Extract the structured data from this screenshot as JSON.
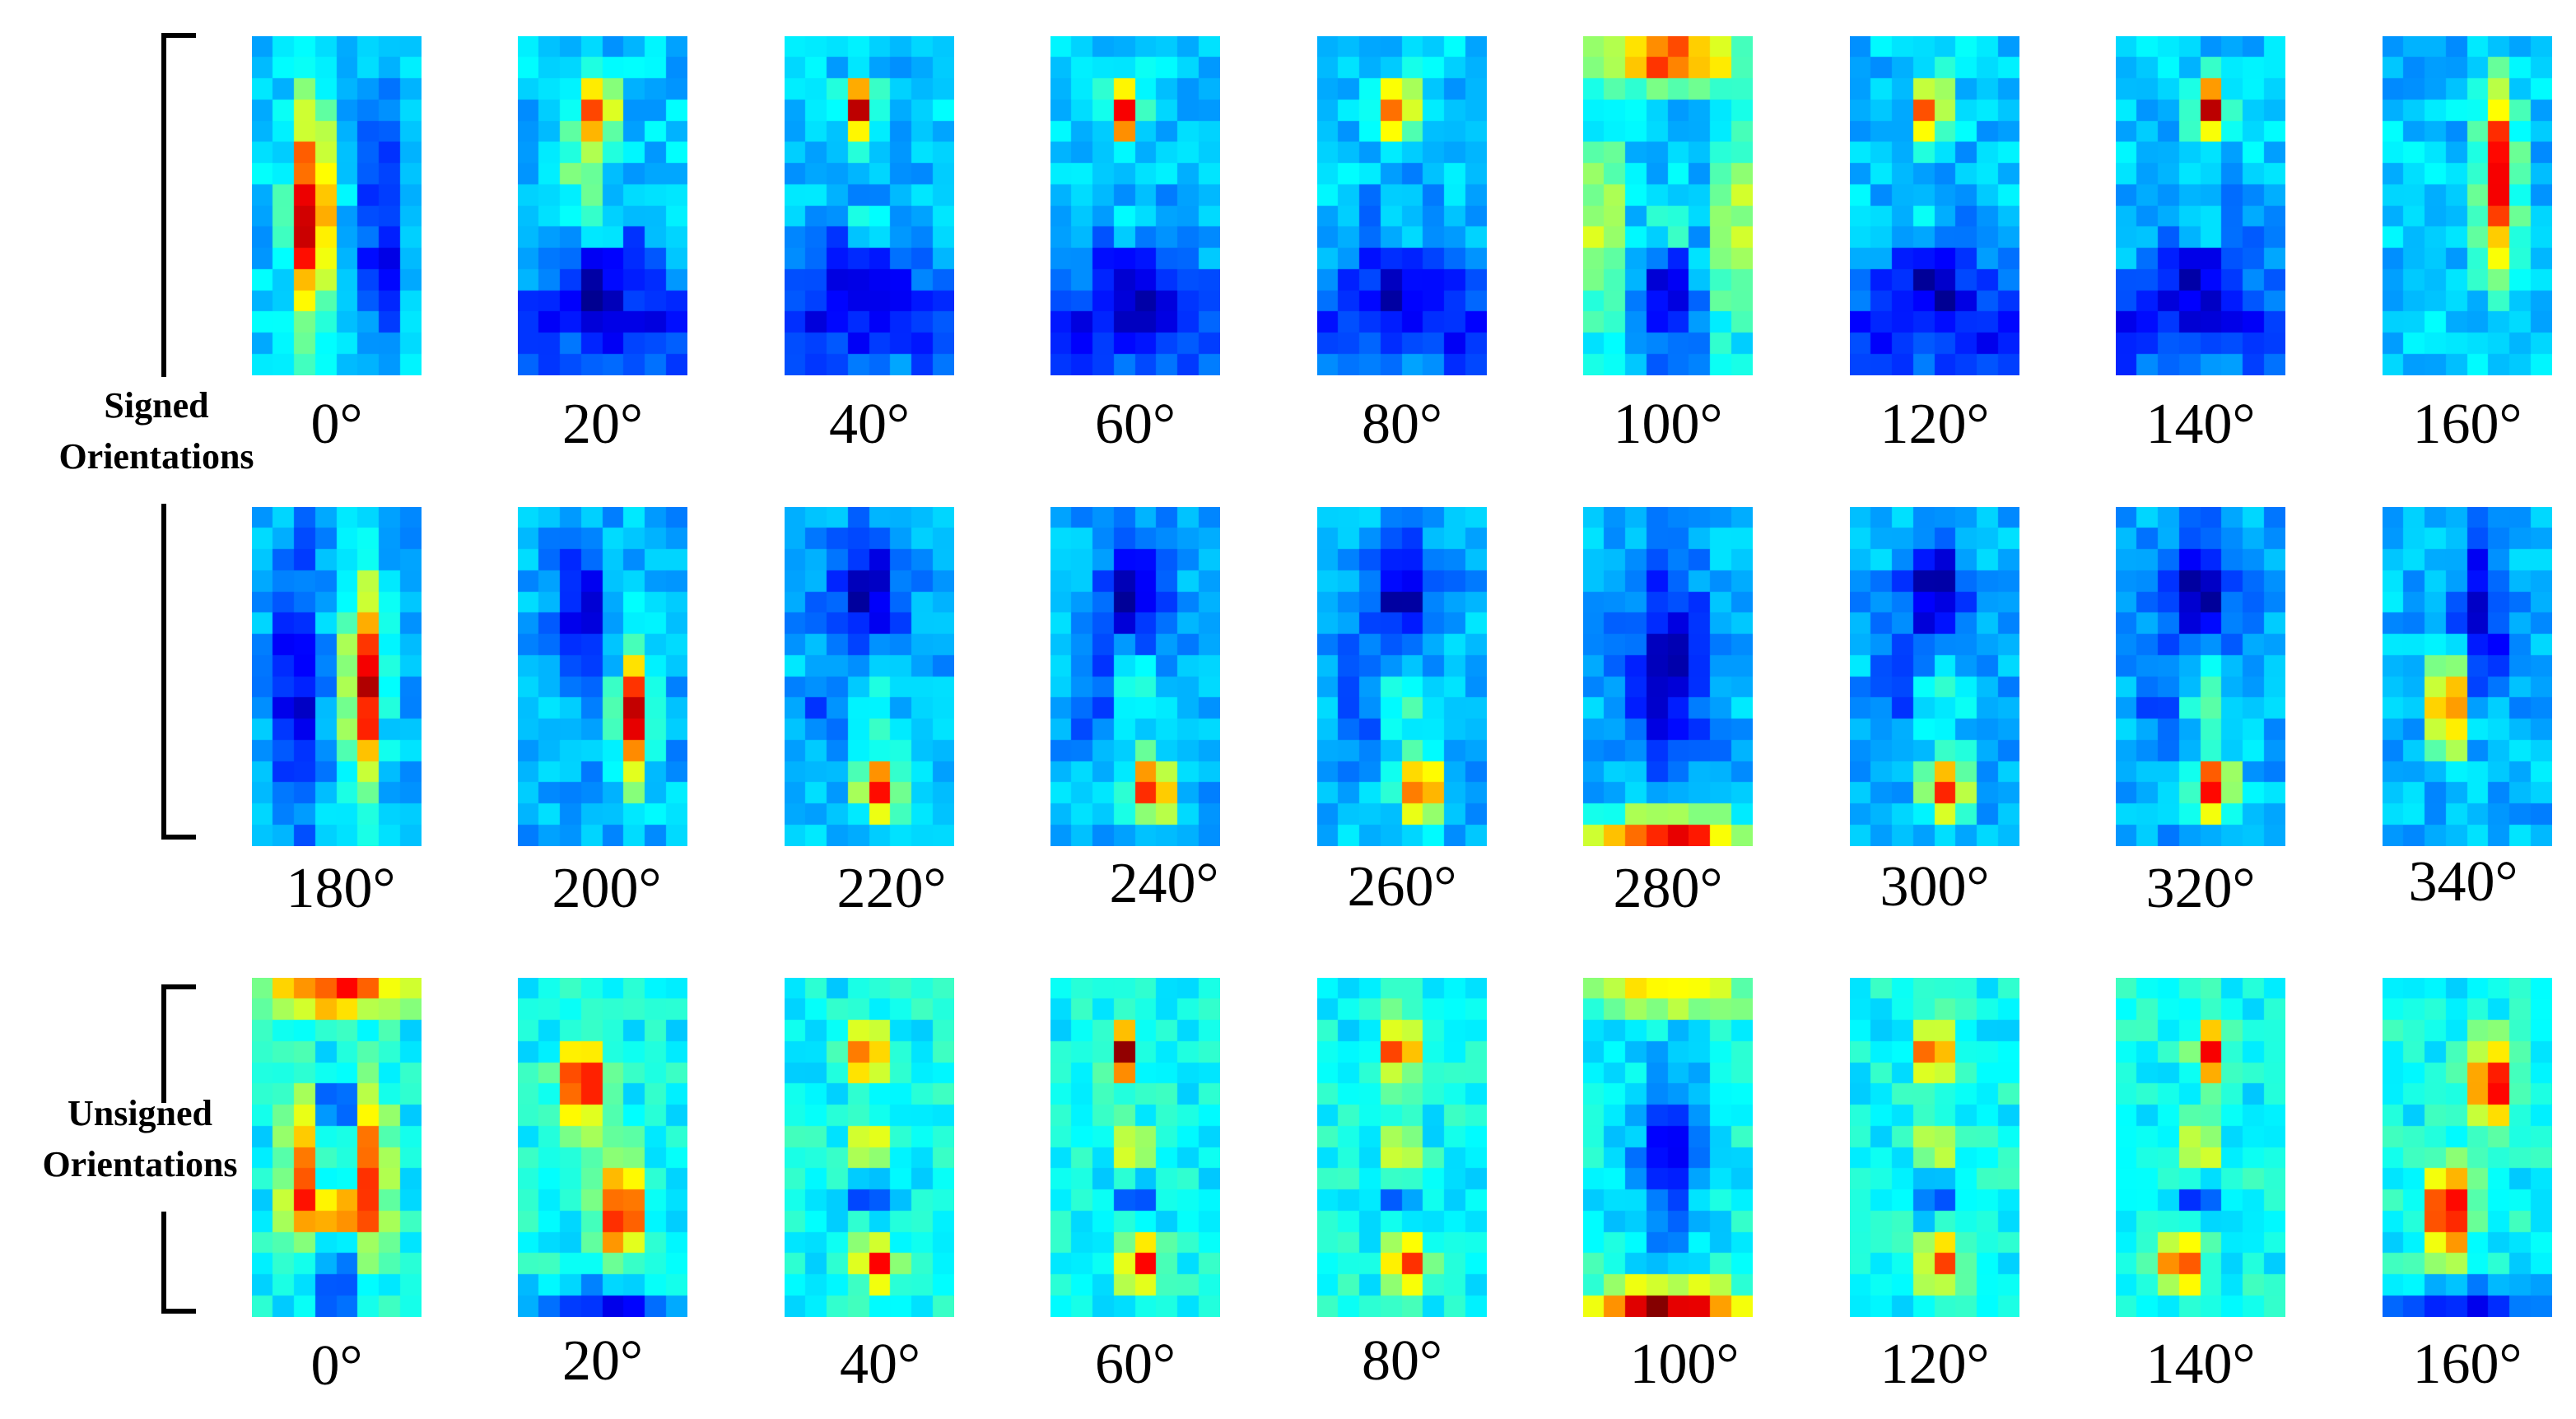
{
  "figure": {
    "groups": [
      {
        "label_lines": [
          "Signed",
          "Orientations"
        ]
      },
      {
        "label_lines": [
          "Unsigned",
          "Orientations"
        ]
      }
    ],
    "rows": [
      {
        "group": "signed",
        "angles": [
          "0°",
          "20°",
          "40°",
          "60°",
          "80°",
          "100°",
          "120°",
          "140°",
          "160°"
        ]
      },
      {
        "group": "signed",
        "angles": [
          "180°",
          "200°",
          "220°",
          "240°",
          "260°",
          "280°",
          "300°",
          "320°",
          "340°"
        ]
      },
      {
        "group": "unsigned",
        "angles": [
          "0°",
          "20°",
          "40°",
          "60°",
          "80°",
          "100°",
          "120°",
          "140°",
          "160°"
        ]
      }
    ],
    "heatmap_grid": {
      "cols": 8,
      "rows": 16
    },
    "colormap": [
      "#00007f",
      "#0000ff",
      "#0080ff",
      "#00ffff",
      "#80ff80",
      "#ffff00",
      "#ff8000",
      "#ff0000",
      "#7f0000"
    ]
  }
}
